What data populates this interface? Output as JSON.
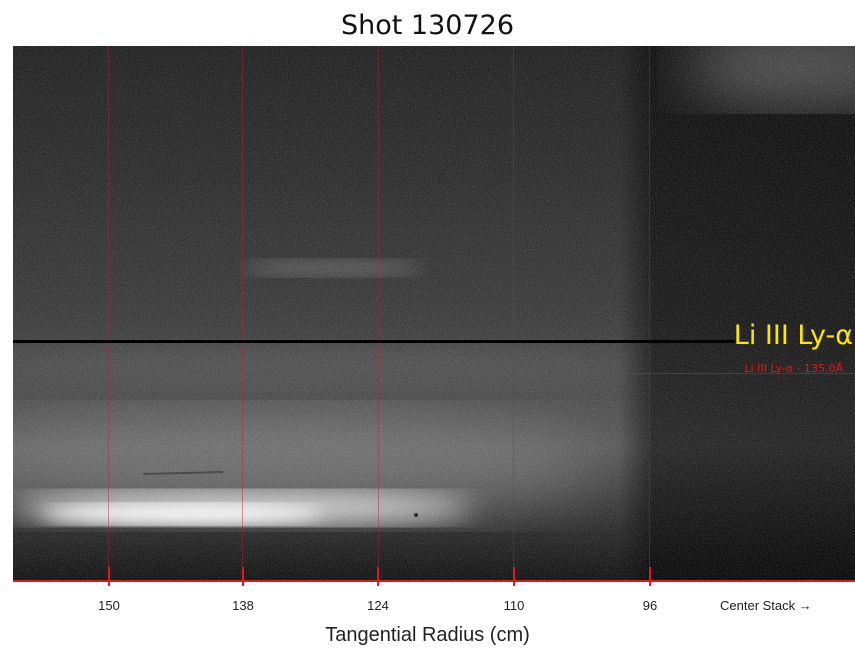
{
  "title": "Shot 130726",
  "line_label": "Li III Ly-α",
  "line_sublabel": "Li III Ly-α - 135.0Å",
  "axis": {
    "ticks": [
      "150",
      "138",
      "124",
      "110",
      "96"
    ],
    "end_label": "Center Stack →",
    "xlabel": "Tangential Radius (cm)"
  },
  "colors": {
    "marker_red": "#e01818",
    "label_yellow": "#ffe600"
  }
}
